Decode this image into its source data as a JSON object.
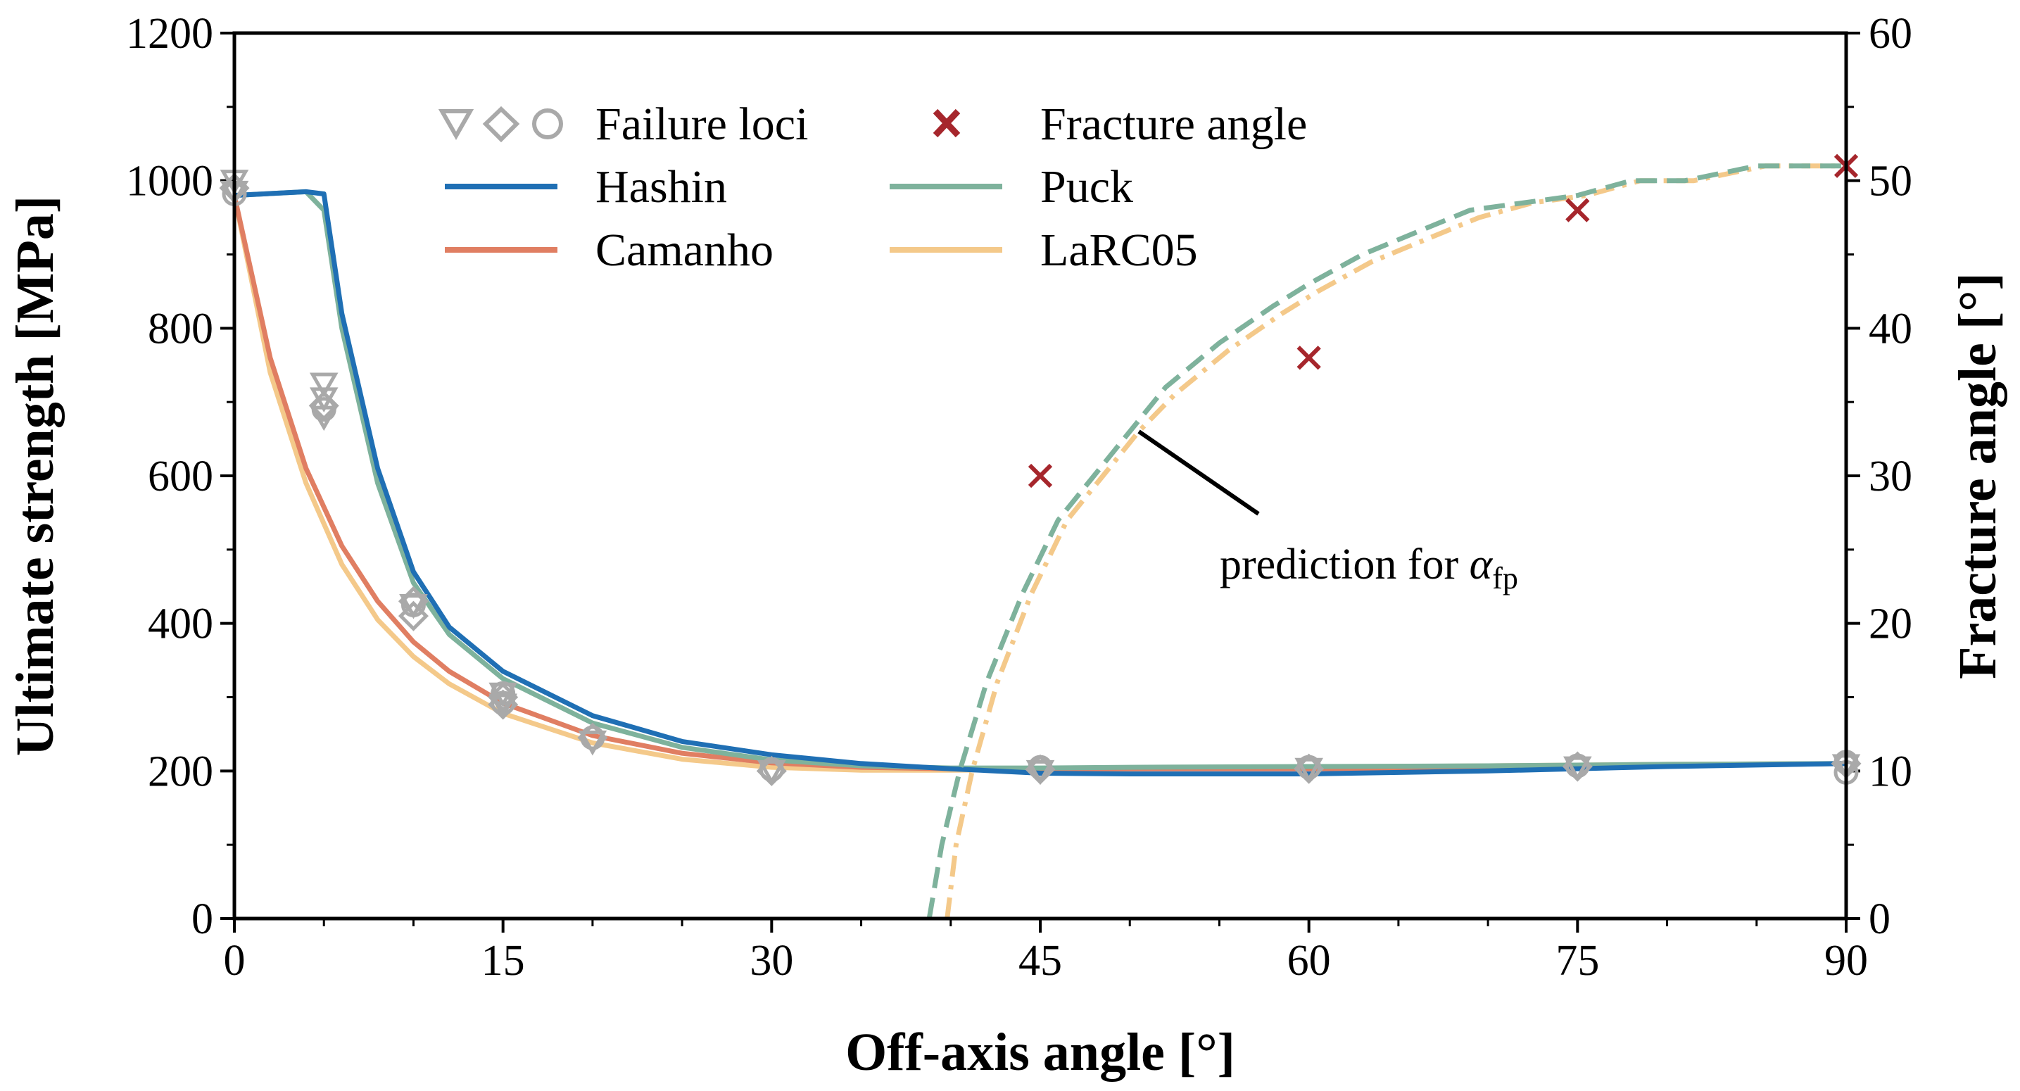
{
  "chart_data": {
    "type": "line",
    "x_axis": {
      "label": "Off-axis angle [°]",
      "range": [
        0,
        90
      ],
      "ticks": [
        0,
        15,
        30,
        45,
        60,
        75,
        90
      ],
      "tick_labels": [
        "0",
        "15",
        "30",
        "45",
        "60",
        "75",
        "90"
      ]
    },
    "y_left": {
      "label": "Ultimate strength [MPa]",
      "range": [
        0,
        1200
      ],
      "ticks": [
        0,
        200,
        400,
        600,
        800,
        1000,
        1200
      ],
      "tick_labels": [
        "0",
        "200",
        "400",
        "600",
        "800",
        "1000",
        "1200"
      ]
    },
    "y_right": {
      "label": "Fracture angle [°]",
      "range": [
        0,
        60
      ],
      "ticks": [
        0,
        10,
        20,
        30,
        40,
        50,
        60
      ],
      "tick_labels": [
        "0",
        "10",
        "20",
        "30",
        "40",
        "50",
        "60"
      ]
    },
    "legend": {
      "position": "top-center",
      "entries": [
        {
          "key": "loci",
          "label": "Failure loci"
        },
        {
          "key": "fracture",
          "label": "Fracture angle"
        },
        {
          "key": "hashin",
          "label": "Hashin"
        },
        {
          "key": "puck",
          "label": "Puck"
        },
        {
          "key": "camanho",
          "label": "Camanho"
        },
        {
          "key": "larc05",
          "label": "LaRC05"
        }
      ]
    },
    "series": [
      {
        "name": "Hashin",
        "key": "hashin",
        "axis": "left",
        "color": "#1f6fb4",
        "x": [
          0,
          4,
          5,
          6,
          8,
          10,
          12,
          15,
          20,
          25,
          30,
          35,
          40,
          45,
          50,
          60,
          70,
          80,
          90
        ],
        "y": [
          980,
          985,
          982,
          820,
          610,
          470,
          395,
          335,
          275,
          240,
          222,
          210,
          203,
          197,
          196,
          196,
          200,
          206,
          210
        ]
      },
      {
        "name": "Puck",
        "key": "puck",
        "axis": "left",
        "color": "#7eb29c",
        "x": [
          0,
          4,
          5,
          6,
          8,
          10,
          12,
          15,
          20,
          25,
          30,
          35,
          40,
          45,
          50,
          60,
          70,
          80,
          90
        ],
        "y": [
          980,
          985,
          960,
          800,
          590,
          455,
          385,
          325,
          265,
          232,
          215,
          207,
          204,
          204,
          205,
          206,
          207,
          209,
          210
        ]
      },
      {
        "name": "Camanho",
        "key": "camanho",
        "axis": "left",
        "color": "#e07e62",
        "x": [
          0,
          2,
          4,
          6,
          8,
          10,
          12,
          15,
          20,
          25,
          30,
          35,
          40,
          45,
          50,
          60,
          70,
          80,
          90
        ],
        "y": [
          980,
          760,
          610,
          505,
          430,
          375,
          335,
          292,
          248,
          224,
          211,
          205,
          203,
          203,
          203,
          203,
          205,
          207,
          210
        ]
      },
      {
        "name": "LaRC05",
        "key": "larc05",
        "axis": "left",
        "color": "#f4c98a",
        "x": [
          0,
          2,
          4,
          6,
          8,
          10,
          12,
          15,
          20,
          25,
          30,
          35,
          40,
          45,
          50,
          60,
          70,
          80,
          90
        ],
        "y": [
          980,
          740,
          590,
          480,
          405,
          355,
          318,
          278,
          238,
          216,
          205,
          201,
          201,
          202,
          203,
          205,
          207,
          209,
          210
        ]
      },
      {
        "name": "Puck fracture angle prediction",
        "key": "puck_fp",
        "axis": "right",
        "color": "#7eb29c",
        "dash": "dashed",
        "x": [
          38.8,
          39.5,
          40.5,
          42,
          44,
          46,
          48,
          50,
          52,
          55,
          58,
          60,
          63,
          66,
          69,
          72,
          75,
          78,
          81,
          85,
          90
        ],
        "y": [
          0,
          5,
          10,
          16,
          22,
          27,
          30,
          33,
          36,
          39,
          41.5,
          43,
          45,
          46.5,
          48,
          48.5,
          49,
          50,
          50,
          51,
          51
        ]
      },
      {
        "name": "LaRC05 fracture angle prediction",
        "key": "larc05_fp",
        "axis": "right",
        "color": "#f4c98a",
        "dash": "dashdot",
        "x": [
          39.8,
          40.3,
          41.2,
          42.6,
          44.5,
          46.5,
          48.5,
          50.5,
          52.5,
          55.5,
          58.5,
          60.5,
          63.5,
          66.5,
          69.5,
          72.5,
          75.5,
          78.5,
          81.5,
          85.5,
          90
        ],
        "y": [
          0,
          5,
          10,
          16,
          22,
          27,
          30,
          33,
          35.5,
          38.5,
          41,
          42.5,
          44.5,
          46,
          47.5,
          48.5,
          49,
          50,
          50,
          51,
          51
        ]
      }
    ],
    "fracture_angle_points": {
      "axis": "right",
      "color": "#a6262c",
      "marker": "x",
      "x": [
        45,
        60,
        75,
        90
      ],
      "y": [
        30,
        38,
        48,
        51
      ]
    },
    "failure_loci": {
      "axis": "left",
      "color": "#a9a9a9",
      "triangles": {
        "x": [
          0,
          0,
          5,
          5,
          5,
          10,
          15,
          15,
          20,
          30,
          45,
          60,
          75,
          90
        ],
        "y": [
          1000,
          985,
          725,
          705,
          680,
          425,
          305,
          290,
          240,
          200,
          200,
          203,
          205,
          208
        ]
      },
      "diamonds": {
        "x": [
          0,
          5,
          10,
          10,
          15,
          15,
          20,
          30,
          45,
          60,
          75,
          90
        ],
        "y": [
          990,
          695,
          430,
          410,
          300,
          290,
          245,
          200,
          202,
          203,
          206,
          210
        ]
      },
      "circles": {
        "x": [
          0,
          5,
          10,
          15,
          15,
          20,
          30,
          45,
          60,
          75,
          90,
          90
        ],
        "y": [
          982,
          690,
          425,
          305,
          292,
          245,
          202,
          205,
          205,
          207,
          212,
          198
        ]
      }
    },
    "annotation": {
      "text": "prediction for ",
      "symbol": "α",
      "subscript": "fp",
      "points_to": {
        "x": 50,
        "y_right": 34
      }
    }
  }
}
